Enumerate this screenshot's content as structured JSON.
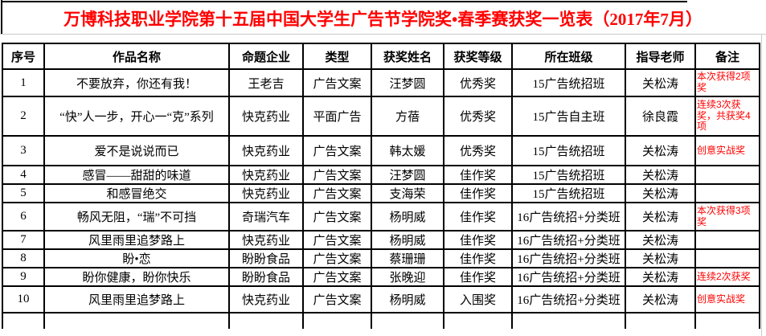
{
  "page_title": "万博科技职业学院第十五届中国大学生广告节学院奖•春季赛获奖一览表（2017年7月）",
  "table": {
    "columns": [
      "序号",
      "作品名称",
      "命题企业",
      "类型",
      "获奖姓名",
      "获奖等级",
      "所在班级",
      "指导老师",
      "备注"
    ],
    "rows": [
      {
        "no": "1",
        "work": "不要放弃，你还有我！",
        "company": "王老吉",
        "type": "广告文案",
        "winner": "汪梦圆",
        "award": "优秀奖",
        "class": "15广告统招班",
        "teacher": "关松涛",
        "remark": "本次获得2项奖"
      },
      {
        "no": "2",
        "work": "“快”人一步，开心一“克”系列",
        "company": "快克药业",
        "type": "平面广告",
        "winner": "方蓓",
        "award": "优秀奖",
        "class": "15广告自主班",
        "teacher": "徐良霞",
        "remark": "连续3次获奖，共获奖4项"
      },
      {
        "no": "3",
        "work": "爱不是说说而已",
        "company": "快克药业",
        "type": "广告文案",
        "winner": "韩太媛",
        "award": "优秀奖",
        "class": "15广告统招班",
        "teacher": "关松涛",
        "remark": "创意实战奖"
      },
      {
        "no": "4",
        "work": "感冒——甜甜的味道",
        "company": "快克药业",
        "type": "广告文案",
        "winner": "汪梦圆",
        "award": "佳作奖",
        "class": "15广告统招班",
        "teacher": "关松涛",
        "remark": ""
      },
      {
        "no": "5",
        "work": "和感冒绝交",
        "company": "快克药业",
        "type": "广告文案",
        "winner": "支海荣",
        "award": "佳作奖",
        "class": "15广告统招班",
        "teacher": "关松涛",
        "remark": ""
      },
      {
        "no": "6",
        "work": "畅风无阻，“瑞”不可挡",
        "company": "奇瑞汽车",
        "type": "广告文案",
        "winner": "杨明威",
        "award": "佳作奖",
        "class": "16广告统招+分类班",
        "teacher": "关松涛",
        "remark": "本次获得3项奖"
      },
      {
        "no": "7",
        "work": "风里雨里追梦路上",
        "company": "快克药业",
        "type": "广告文案",
        "winner": "杨明威",
        "award": "佳作奖",
        "class": "16广告统招+分类班",
        "teacher": "关松涛",
        "remark": ""
      },
      {
        "no": "8",
        "work": "盼•恋",
        "company": "盼盼食品",
        "type": "广告文案",
        "winner": "蔡珊珊",
        "award": "佳作奖",
        "class": "16广告统招+分类班",
        "teacher": "关松涛",
        "remark": ""
      },
      {
        "no": "9",
        "work": "盼你健康，盼你快乐",
        "company": "盼盼食品",
        "type": "广告文案",
        "winner": "张晚迎",
        "award": "佳作奖",
        "class": "16广告统招+分类班",
        "teacher": "关松涛",
        "remark": "连续2次获奖"
      },
      {
        "no": "10",
        "work": "风里雨里追梦路上",
        "company": "快克药业",
        "type": "广告文案",
        "winner": "杨明威",
        "award": "入围奖",
        "class": "16广告统招+分类班",
        "teacher": "关松涛",
        "remark": "创意实战奖"
      }
    ]
  },
  "colors": {
    "title_red": "#ff0000",
    "remark_red": "#ff0000",
    "border_black": "#000000",
    "gridline_gray": "#c9c9c9",
    "background": "#ffffff"
  }
}
